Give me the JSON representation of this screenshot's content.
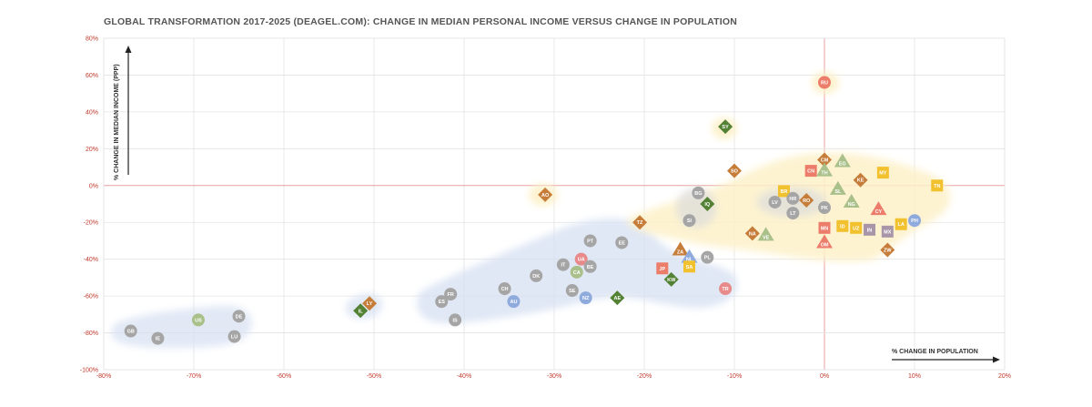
{
  "chart_data": {
    "type": "scatter",
    "title": "GLOBAL TRANSFORMATION 2017-2025 (DEAGEL.COM): CHANGE IN MEDIAN PERSONAL INCOME VERSUS CHANGE IN POPULATION",
    "xlabel": "% CHANGE IN POPULATION",
    "ylabel": "% CHANGE IN MEDIAN INCOME (PPP)",
    "xlim": [
      -80,
      20
    ],
    "ylim": [
      -100,
      80
    ],
    "x_ticks": [
      "-80%",
      "-70%",
      "-60%",
      "-50%",
      "-40%",
      "-30%",
      "-20%",
      "-10%",
      "0%",
      "10%",
      "20%"
    ],
    "y_ticks": [
      "80%",
      "60%",
      "40%",
      "20%",
      "0%",
      "-20%",
      "-40%",
      "-60%",
      "-80%",
      "-100%"
    ],
    "grid": true,
    "colors": {
      "gray": "#a5a5a5",
      "orange": "#ed7d6b",
      "green": "#548235",
      "brown": "#c67d3a",
      "olive": "#a9c08a",
      "yellow": "#f2c12e",
      "blue": "#8faadc",
      "pink": "#e88a8a",
      "violet": "#a896a8",
      "zero_line": "#e8a0a0",
      "blob_blue": "#d6e0f2",
      "blob_yellow": "#fdf1c9",
      "blob_gray": "#dcdcdc"
    },
    "points": [
      {
        "label": "GB",
        "x": -77,
        "y": -79,
        "shape": "circle",
        "color": "gray"
      },
      {
        "label": "IE",
        "x": -74,
        "y": -83,
        "shape": "circle",
        "color": "gray"
      },
      {
        "label": "US",
        "x": -69.5,
        "y": -73,
        "shape": "circle",
        "color": "olive"
      },
      {
        "label": "DE",
        "x": -65,
        "y": -71,
        "shape": "circle",
        "color": "gray"
      },
      {
        "label": "LU",
        "x": -65.5,
        "y": -82,
        "shape": "circle",
        "color": "gray"
      },
      {
        "label": "IL",
        "x": -51.5,
        "y": -68,
        "shape": "diamond",
        "color": "green"
      },
      {
        "label": "LY",
        "x": -50.5,
        "y": -64,
        "shape": "diamond",
        "color": "brown"
      },
      {
        "label": "FR",
        "x": -41.5,
        "y": -59,
        "shape": "circle",
        "color": "gray"
      },
      {
        "label": "ES",
        "x": -42.5,
        "y": -63,
        "shape": "circle",
        "color": "gray"
      },
      {
        "label": "IS",
        "x": -41,
        "y": -73,
        "shape": "circle",
        "color": "gray"
      },
      {
        "label": "CH",
        "x": -35.5,
        "y": -56,
        "shape": "circle",
        "color": "gray"
      },
      {
        "label": "AU",
        "x": -34.5,
        "y": -63,
        "shape": "circle",
        "color": "blue"
      },
      {
        "label": "DK",
        "x": -32,
        "y": -49,
        "shape": "circle",
        "color": "gray"
      },
      {
        "label": "IT",
        "x": -29,
        "y": -43,
        "shape": "circle",
        "color": "gray"
      },
      {
        "label": "SE",
        "x": -28,
        "y": -57,
        "shape": "circle",
        "color": "gray"
      },
      {
        "label": "CA",
        "x": -27.5,
        "y": -47,
        "shape": "circle",
        "color": "olive"
      },
      {
        "label": "UA",
        "x": -27,
        "y": -40,
        "shape": "circle",
        "color": "pink"
      },
      {
        "label": "BE",
        "x": -26,
        "y": -44,
        "shape": "circle",
        "color": "gray"
      },
      {
        "label": "NZ",
        "x": -26.5,
        "y": -61,
        "shape": "circle",
        "color": "blue"
      },
      {
        "label": "PT",
        "x": -26,
        "y": -30,
        "shape": "circle",
        "color": "gray"
      },
      {
        "label": "EE",
        "x": -22.5,
        "y": -31,
        "shape": "circle",
        "color": "gray"
      },
      {
        "label": "AE",
        "x": -23,
        "y": -61,
        "shape": "diamond",
        "color": "green"
      },
      {
        "label": "AO",
        "x": -31,
        "y": -5,
        "shape": "diamond",
        "color": "brown"
      },
      {
        "label": "TZ",
        "x": -20.5,
        "y": -20,
        "shape": "diamond",
        "color": "brown"
      },
      {
        "label": "JP",
        "x": -18,
        "y": -45,
        "shape": "square",
        "color": "orange"
      },
      {
        "label": "KW",
        "x": -17,
        "y": -51,
        "shape": "diamond",
        "color": "green"
      },
      {
        "label": "ZA",
        "x": -16,
        "y": -35,
        "shape": "triangle",
        "color": "brown"
      },
      {
        "label": "NL",
        "x": -15,
        "y": -39,
        "shape": "triangle",
        "color": "blue"
      },
      {
        "label": "SA",
        "x": -15,
        "y": -44,
        "shape": "square",
        "color": "yellow"
      },
      {
        "label": "PL",
        "x": -13,
        "y": -39,
        "shape": "circle",
        "color": "gray"
      },
      {
        "label": "TR",
        "x": -11,
        "y": -56,
        "shape": "circle",
        "color": "pink"
      },
      {
        "label": "SI",
        "x": -15,
        "y": -19,
        "shape": "circle",
        "color": "gray"
      },
      {
        "label": "BG",
        "x": -14,
        "y": -4,
        "shape": "circle",
        "color": "gray"
      },
      {
        "label": "IQ",
        "x": -13,
        "y": -10,
        "shape": "diamond",
        "color": "green"
      },
      {
        "label": "SY",
        "x": -11,
        "y": 32,
        "shape": "diamond",
        "color": "green"
      },
      {
        "label": "SO",
        "x": -10,
        "y": 8,
        "shape": "diamond",
        "color": "brown"
      },
      {
        "label": "NA",
        "x": -8,
        "y": -26,
        "shape": "diamond",
        "color": "brown"
      },
      {
        "label": "VE",
        "x": -6.5,
        "y": -27,
        "shape": "triangle",
        "color": "olive"
      },
      {
        "label": "BR",
        "x": -4.5,
        "y": -3,
        "shape": "square",
        "color": "yellow"
      },
      {
        "label": "LV",
        "x": -5.5,
        "y": -9,
        "shape": "circle",
        "color": "gray"
      },
      {
        "label": "LT",
        "x": -3.5,
        "y": -15,
        "shape": "circle",
        "color": "gray"
      },
      {
        "label": "HR",
        "x": -3.5,
        "y": -7,
        "shape": "circle",
        "color": "gray"
      },
      {
        "label": "RO",
        "x": -2,
        "y": -8,
        "shape": "diamond",
        "color": "brown"
      },
      {
        "label": "RU",
        "x": 0,
        "y": 56,
        "shape": "circle",
        "color": "orange"
      },
      {
        "label": "CM",
        "x": 0,
        "y": 14,
        "shape": "diamond",
        "color": "brown"
      },
      {
        "label": "CN",
        "x": -1.5,
        "y": 8,
        "shape": "square",
        "color": "orange"
      },
      {
        "label": "TH",
        "x": 0,
        "y": 8,
        "shape": "triangle",
        "color": "olive"
      },
      {
        "label": "EG",
        "x": 2,
        "y": 13,
        "shape": "triangle",
        "color": "olive"
      },
      {
        "label": "SL",
        "x": 1.5,
        "y": -2,
        "shape": "triangle",
        "color": "olive"
      },
      {
        "label": "PK",
        "x": 0,
        "y": -12,
        "shape": "circle",
        "color": "gray"
      },
      {
        "label": "KE",
        "x": 4,
        "y": 3,
        "shape": "diamond",
        "color": "brown"
      },
      {
        "label": "NG",
        "x": 3,
        "y": -9,
        "shape": "triangle",
        "color": "olive"
      },
      {
        "label": "MY",
        "x": 6.5,
        "y": 7,
        "shape": "square",
        "color": "yellow"
      },
      {
        "label": "CY",
        "x": 6,
        "y": -13,
        "shape": "triangle",
        "color": "orange"
      },
      {
        "label": "MN",
        "x": 0,
        "y": -23,
        "shape": "square",
        "color": "orange"
      },
      {
        "label": "ID",
        "x": 2,
        "y": -22,
        "shape": "square",
        "color": "yellow"
      },
      {
        "label": "UZ",
        "x": 3.5,
        "y": -23,
        "shape": "square",
        "color": "yellow"
      },
      {
        "label": "IN",
        "x": 5,
        "y": -24,
        "shape": "square",
        "color": "violet"
      },
      {
        "label": "OM",
        "x": 0,
        "y": -31,
        "shape": "triangle",
        "color": "orange"
      },
      {
        "label": "MX",
        "x": 7,
        "y": -25,
        "shape": "square",
        "color": "violet"
      },
      {
        "label": "LA",
        "x": 8.5,
        "y": -21,
        "shape": "square",
        "color": "yellow"
      },
      {
        "label": "PH",
        "x": 10,
        "y": -19,
        "shape": "circle",
        "color": "blue"
      },
      {
        "label": "ZW",
        "x": 7,
        "y": -35,
        "shape": "diamond",
        "color": "brown"
      },
      {
        "label": "TN",
        "x": 12.5,
        "y": 0,
        "shape": "square",
        "color": "yellow"
      }
    ]
  }
}
